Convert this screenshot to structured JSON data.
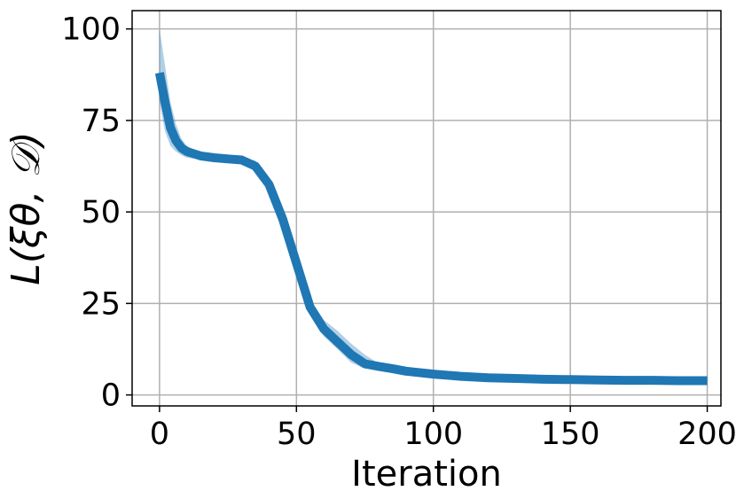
{
  "chart_data": {
    "type": "line",
    "xlabel": "Iteration",
    "ylabel": "L(ξθ, 𝒟)",
    "xlim": [
      -10,
      205
    ],
    "ylim": [
      -3,
      105
    ],
    "xticks": [
      "0",
      "50",
      "100",
      "150",
      "200"
    ],
    "yticks": [
      "0",
      "25",
      "50",
      "75",
      "100"
    ],
    "grid": true,
    "colors": {
      "line": "#1f77b4",
      "band": "#1f77b4"
    },
    "series": [
      {
        "x": [
          0,
          2,
          4,
          6,
          8,
          10,
          15,
          20,
          25,
          30,
          35,
          40,
          45,
          50,
          55,
          60,
          65,
          70,
          75,
          80,
          85,
          90,
          100,
          110,
          120,
          130,
          140,
          150,
          160,
          170,
          180,
          190,
          200
        ],
        "y": [
          88,
          80,
          73,
          69.5,
          67.5,
          66.5,
          65.3,
          64.8,
          64.5,
          64.2,
          62.5,
          57.5,
          48,
          36,
          24,
          18,
          14.5,
          11,
          8.5,
          7.8,
          7.2,
          6.5,
          5.7,
          5.1,
          4.7,
          4.5,
          4.3,
          4.2,
          4.1,
          4.0,
          4.0,
          3.9,
          3.9
        ],
        "upper": [
          100,
          90,
          80,
          74,
          70,
          68,
          66.2,
          65.5,
          65.1,
          64.8,
          64,
          59.5,
          50,
          38,
          26,
          20.5,
          17.5,
          14,
          11,
          8.6,
          7.8,
          7,
          6.1,
          5.4,
          5.0,
          4.8,
          4.6,
          4.5,
          4.4,
          4.3,
          4.3,
          4.2,
          4.2
        ],
        "lower": [
          80,
          72,
          68,
          66.5,
          65.5,
          64.8,
          64.4,
          64.1,
          63.9,
          63.6,
          61,
          55.5,
          46,
          34,
          22,
          16,
          12.5,
          8.8,
          7.2,
          7.0,
          6.6,
          6.0,
          5.3,
          4.8,
          4.4,
          4.2,
          4.0,
          3.9,
          3.8,
          3.7,
          3.7,
          3.6,
          3.6
        ]
      }
    ]
  }
}
